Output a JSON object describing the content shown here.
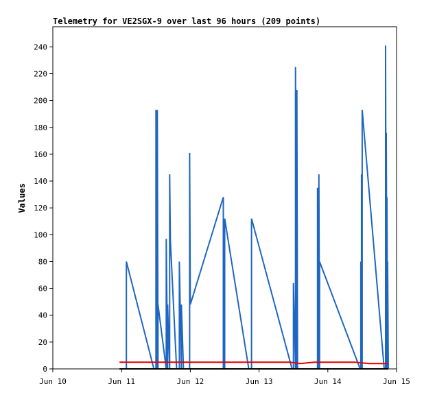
{
  "chart_data": {
    "type": "line",
    "title": "Telemetry for VE2SGX-9 over last 96 hours (209 points)",
    "xlabel": "",
    "ylabel": "Values",
    "xlim": [
      10,
      15
    ],
    "ylim": [
      0,
      255
    ],
    "x_ticks": [
      {
        "value": 10,
        "label": "Jun 10"
      },
      {
        "value": 11,
        "label": "Jun 11"
      },
      {
        "value": 12,
        "label": "Jun 12"
      },
      {
        "value": 13,
        "label": "Jun 13"
      },
      {
        "value": 14,
        "label": "Jun 14"
      },
      {
        "value": 15,
        "label": "Jun 15"
      }
    ],
    "y_ticks": [
      0,
      20,
      40,
      60,
      80,
      100,
      120,
      140,
      160,
      180,
      200,
      220,
      240
    ],
    "grid": false,
    "colors": {
      "blue": "#1f66c2",
      "red": "#e00000",
      "black": "#000000"
    },
    "series": [
      {
        "color": "#1f66c2",
        "points": [
          [
            11.07,
            0
          ],
          [
            11.07,
            80
          ],
          [
            11.47,
            0
          ],
          [
            11.5,
            0
          ],
          [
            11.5,
            193
          ],
          [
            11.52,
            0
          ],
          [
            11.52,
            193
          ],
          [
            11.53,
            0
          ],
          [
            11.53,
            48
          ],
          [
            11.65,
            0
          ],
          [
            11.65,
            97
          ],
          [
            11.67,
            0
          ],
          [
            11.67,
            48
          ],
          [
            11.7,
            0
          ],
          [
            11.7,
            145
          ],
          [
            11.71,
            96
          ],
          [
            11.8,
            0
          ],
          [
            11.84,
            0
          ],
          [
            11.84,
            80
          ],
          [
            11.87,
            0
          ],
          [
            11.87,
            48
          ],
          [
            11.9,
            0
          ],
          [
            11.99,
            0
          ],
          [
            11.99,
            161
          ],
          [
            12.0,
            48
          ],
          [
            12.48,
            128
          ],
          [
            12.48,
            0
          ],
          [
            12.5,
            0
          ],
          [
            12.5,
            112
          ],
          [
            12.85,
            0
          ],
          [
            12.89,
            0
          ],
          [
            12.89,
            112
          ],
          [
            13.48,
            0
          ],
          [
            13.5,
            0
          ],
          [
            13.5,
            64
          ],
          [
            13.53,
            0
          ],
          [
            13.53,
            225
          ],
          [
            13.55,
            0
          ],
          [
            13.55,
            208
          ],
          [
            13.56,
            0
          ],
          [
            13.85,
            0
          ],
          [
            13.85,
            135
          ],
          [
            13.87,
            0
          ],
          [
            13.87,
            145
          ],
          [
            13.88,
            0
          ],
          [
            13.88,
            80
          ],
          [
            14.47,
            0
          ],
          [
            14.48,
            0
          ],
          [
            14.48,
            80
          ],
          [
            14.49,
            0
          ],
          [
            14.49,
            145
          ],
          [
            14.5,
            0
          ],
          [
            14.5,
            193
          ],
          [
            14.82,
            0
          ],
          [
            14.84,
            0
          ],
          [
            14.84,
            241
          ],
          [
            14.85,
            0
          ],
          [
            14.85,
            176
          ],
          [
            14.86,
            0
          ],
          [
            14.86,
            128
          ],
          [
            14.87,
            0
          ],
          [
            14.87,
            80
          ],
          [
            14.88,
            0
          ]
        ]
      },
      {
        "color": "#e00000",
        "points": [
          [
            10.97,
            5
          ],
          [
            12.0,
            5
          ],
          [
            13.0,
            5
          ],
          [
            13.45,
            5
          ],
          [
            13.6,
            4
          ],
          [
            13.8,
            5
          ],
          [
            14.4,
            5
          ],
          [
            14.6,
            4
          ],
          [
            14.88,
            4
          ]
        ]
      },
      {
        "color": "#000000",
        "points": [
          [
            10.97,
            0
          ],
          [
            14.88,
            0
          ]
        ]
      }
    ]
  }
}
